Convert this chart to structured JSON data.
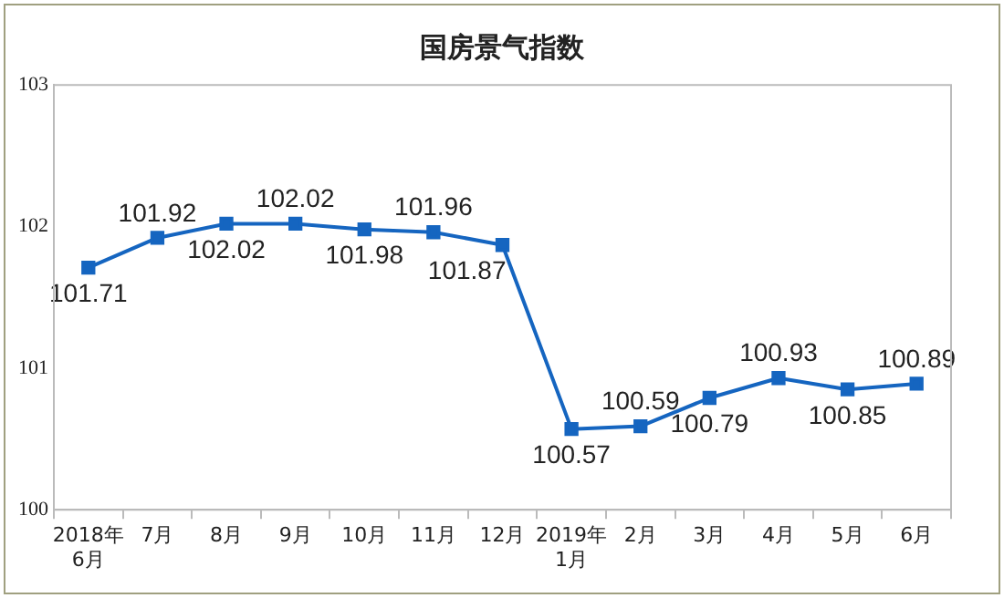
{
  "chart_data": {
    "type": "line",
    "title": "国房景气指数",
    "categories": [
      "2018年\n6月",
      "7月",
      "8月",
      "9月",
      "10月",
      "11月",
      "12月",
      "2019年\n1月",
      "2月",
      "3月",
      "4月",
      "5月",
      "6月"
    ],
    "series": [
      {
        "color": "#1565c0",
        "values": [
          101.71,
          101.92,
          102.02,
          102.02,
          101.98,
          101.96,
          101.87,
          100.57,
          100.59,
          100.79,
          100.93,
          100.85,
          100.89
        ]
      }
    ],
    "ylim": [
      100,
      103
    ],
    "yticks": [
      100,
      101,
      102,
      103
    ],
    "grid": false,
    "legend": false,
    "marker": "square",
    "line_style": "solid",
    "data_labels": true
  }
}
